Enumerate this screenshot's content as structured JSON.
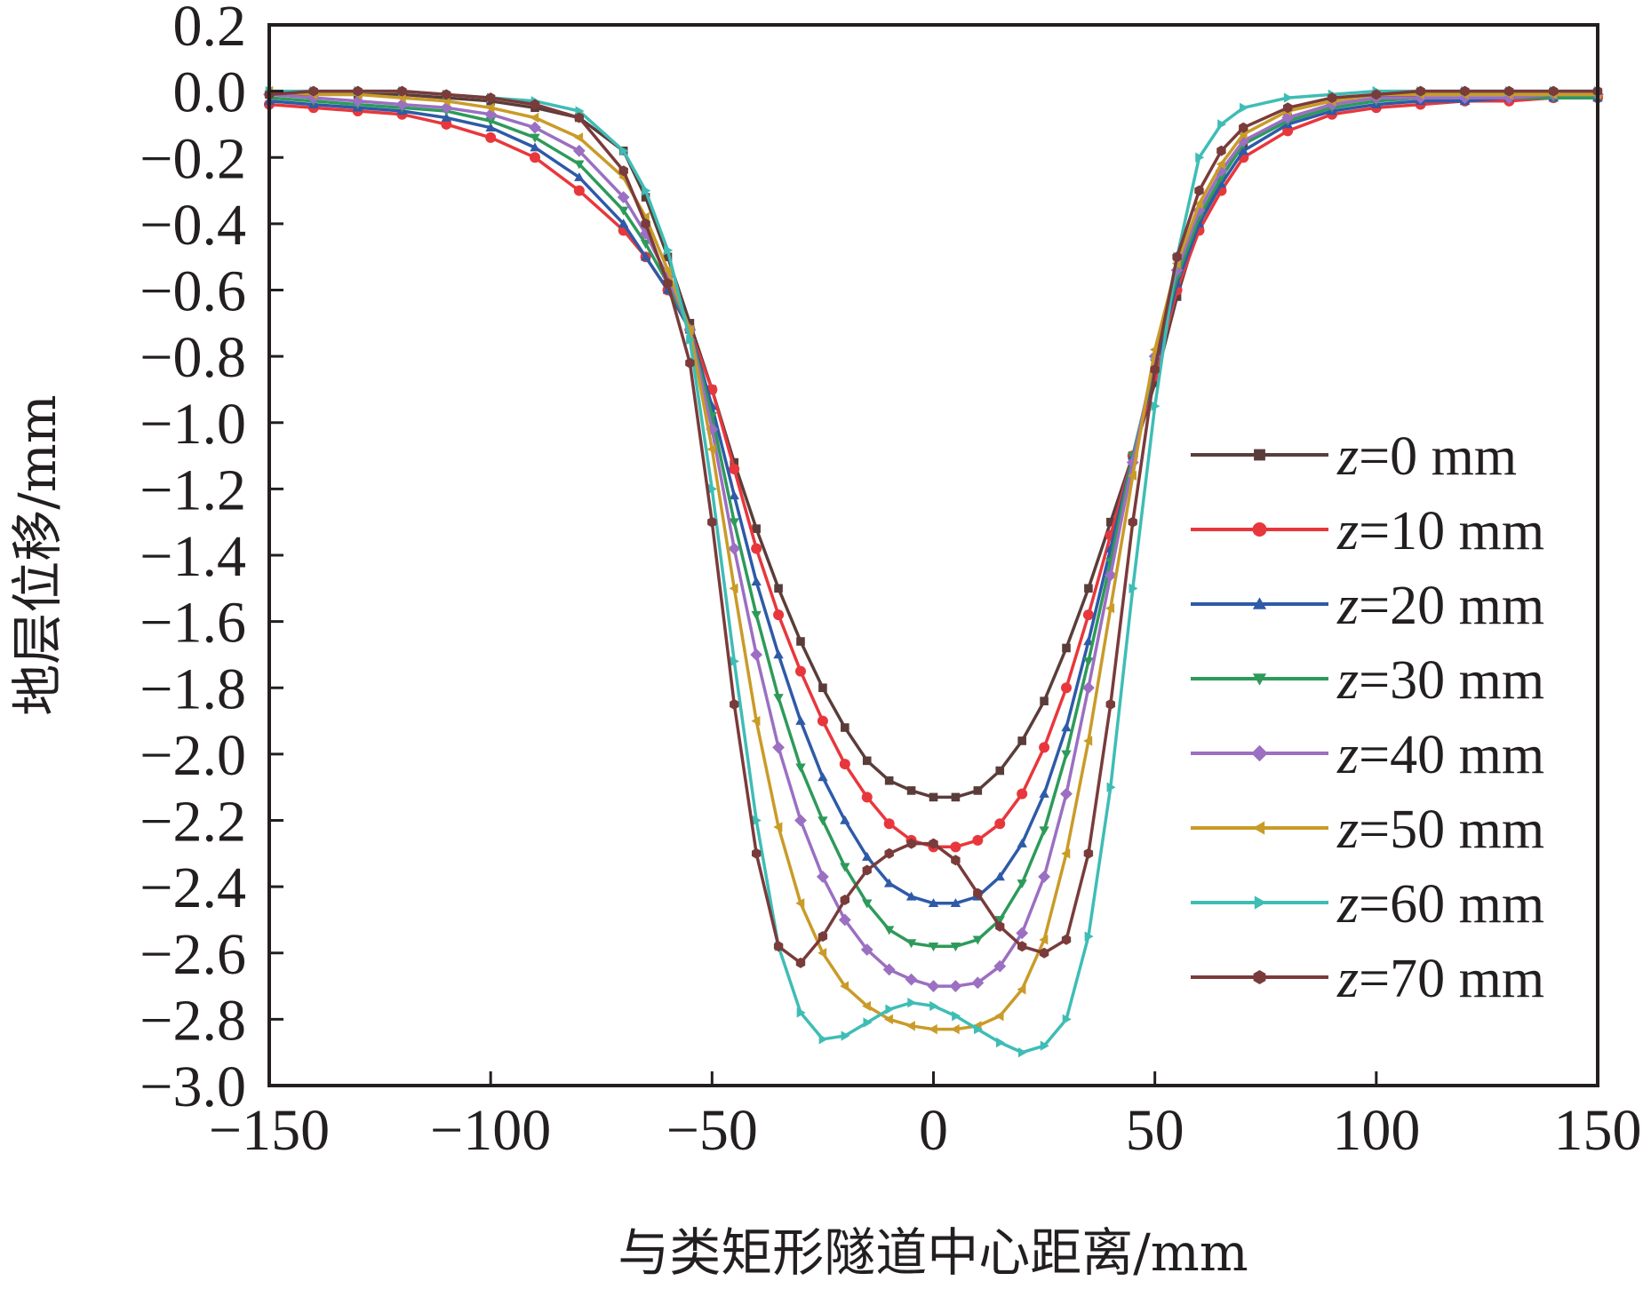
{
  "chart_data": {
    "type": "line",
    "title": "",
    "xlabel": "与类矩形隧道中心距离/mm",
    "ylabel": "地层位移/mm",
    "xlim": [
      -150,
      150
    ],
    "ylim": [
      -3.0,
      0.2
    ],
    "xticks": [
      -150,
      -100,
      -50,
      0,
      50,
      100,
      150
    ],
    "xtick_labels": [
      "−150",
      "−100",
      "−50",
      "0",
      "50",
      "100",
      "150"
    ],
    "yticks": [
      0.2,
      0.0,
      -0.2,
      -0.4,
      -0.6,
      -0.8,
      -1.0,
      -1.2,
      -1.4,
      -1.6,
      -1.8,
      -2.0,
      -2.2,
      -2.4,
      -2.6,
      -2.8,
      -3.0
    ],
    "ytick_labels": [
      "0.2",
      "0.0",
      "−0.2",
      "−0.4",
      "−0.6",
      "−0.8",
      "−1.0",
      "−1.2",
      "−1.4",
      "−1.6",
      "−1.8",
      "−2.0",
      "−2.2",
      "−2.4",
      "−2.6",
      "−2.8",
      "−3.0"
    ],
    "grid": false,
    "legend_position": "right",
    "x": [
      -150,
      -140,
      -130,
      -120,
      -110,
      -100,
      -90,
      -80,
      -70,
      -65,
      -60,
      -55,
      -50,
      -45,
      -40,
      -35,
      -30,
      -25,
      -20,
      -15,
      -10,
      -5,
      0,
      5,
      10,
      15,
      20,
      25,
      30,
      35,
      40,
      45,
      50,
      55,
      60,
      65,
      70,
      80,
      90,
      100,
      110,
      120,
      130,
      140,
      150
    ],
    "series": [
      {
        "name": "z=0 mm",
        "color": "#5a3d3a",
        "marker": "square",
        "values": [
          -0.01,
          -0.01,
          -0.01,
          -0.01,
          -0.02,
          -0.03,
          -0.05,
          -0.08,
          -0.18,
          -0.32,
          -0.5,
          -0.7,
          -0.9,
          -1.12,
          -1.32,
          -1.5,
          -1.66,
          -1.8,
          -1.92,
          -2.02,
          -2.08,
          -2.11,
          -2.13,
          -2.13,
          -2.11,
          -2.05,
          -1.96,
          -1.84,
          -1.68,
          -1.5,
          -1.3,
          -1.1,
          -0.88,
          -0.62,
          -0.4,
          -0.26,
          -0.16,
          -0.08,
          -0.04,
          -0.02,
          -0.01,
          -0.01,
          -0.01,
          -0.01,
          -0.01
        ]
      },
      {
        "name": "z=10 mm",
        "color": "#e8373c",
        "marker": "circle",
        "values": [
          -0.04,
          -0.05,
          -0.06,
          -0.07,
          -0.1,
          -0.14,
          -0.2,
          -0.3,
          -0.42,
          -0.5,
          -0.6,
          -0.72,
          -0.9,
          -1.14,
          -1.38,
          -1.58,
          -1.75,
          -1.9,
          -2.03,
          -2.13,
          -2.21,
          -2.26,
          -2.28,
          -2.28,
          -2.26,
          -2.21,
          -2.12,
          -1.98,
          -1.8,
          -1.58,
          -1.34,
          -1.1,
          -0.86,
          -0.6,
          -0.42,
          -0.3,
          -0.2,
          -0.12,
          -0.07,
          -0.05,
          -0.04,
          -0.03,
          -0.03,
          -0.02,
          -0.02
        ]
      },
      {
        "name": "z=20 mm",
        "color": "#2e5aa8",
        "marker": "triangle-up",
        "values": [
          -0.03,
          -0.04,
          -0.05,
          -0.06,
          -0.08,
          -0.11,
          -0.17,
          -0.26,
          -0.4,
          -0.5,
          -0.6,
          -0.72,
          -0.95,
          -1.22,
          -1.48,
          -1.7,
          -1.9,
          -2.07,
          -2.2,
          -2.31,
          -2.39,
          -2.43,
          -2.45,
          -2.45,
          -2.43,
          -2.37,
          -2.27,
          -2.12,
          -1.92,
          -1.66,
          -1.38,
          -1.1,
          -0.84,
          -0.58,
          -0.4,
          -0.28,
          -0.18,
          -0.1,
          -0.06,
          -0.04,
          -0.03,
          -0.03,
          -0.02,
          -0.02,
          -0.02
        ]
      },
      {
        "name": "z=30 mm",
        "color": "#2e9a5a",
        "marker": "triangle-down",
        "values": [
          -0.02,
          -0.03,
          -0.04,
          -0.05,
          -0.06,
          -0.09,
          -0.14,
          -0.22,
          -0.36,
          -0.46,
          -0.58,
          -0.72,
          -0.98,
          -1.3,
          -1.58,
          -1.83,
          -2.04,
          -2.2,
          -2.34,
          -2.45,
          -2.53,
          -2.57,
          -2.58,
          -2.58,
          -2.56,
          -2.5,
          -2.39,
          -2.23,
          -2.0,
          -1.72,
          -1.42,
          -1.1,
          -0.82,
          -0.56,
          -0.38,
          -0.26,
          -0.16,
          -0.09,
          -0.05,
          -0.03,
          -0.02,
          -0.02,
          -0.02,
          -0.02,
          -0.02
        ]
      },
      {
        "name": "z=40 mm",
        "color": "#9b6fc2",
        "marker": "diamond",
        "values": [
          -0.01,
          -0.02,
          -0.03,
          -0.04,
          -0.05,
          -0.07,
          -0.11,
          -0.18,
          -0.32,
          -0.43,
          -0.56,
          -0.72,
          -1.02,
          -1.38,
          -1.7,
          -1.98,
          -2.2,
          -2.37,
          -2.5,
          -2.59,
          -2.65,
          -2.68,
          -2.7,
          -2.7,
          -2.69,
          -2.64,
          -2.54,
          -2.37,
          -2.12,
          -1.8,
          -1.46,
          -1.12,
          -0.8,
          -0.54,
          -0.36,
          -0.24,
          -0.15,
          -0.08,
          -0.04,
          -0.02,
          -0.02,
          -0.02,
          -0.02,
          -0.01,
          -0.01
        ]
      },
      {
        "name": "z=50 mm",
        "color": "#c99b28",
        "marker": "triangle-left",
        "values": [
          0.0,
          -0.01,
          -0.01,
          -0.02,
          -0.03,
          -0.05,
          -0.08,
          -0.14,
          -0.26,
          -0.38,
          -0.54,
          -0.72,
          -1.08,
          -1.5,
          -1.9,
          -2.22,
          -2.45,
          -2.6,
          -2.7,
          -2.76,
          -2.8,
          -2.82,
          -2.83,
          -2.83,
          -2.82,
          -2.79,
          -2.71,
          -2.56,
          -2.3,
          -1.96,
          -1.56,
          -1.16,
          -0.78,
          -0.52,
          -0.34,
          -0.22,
          -0.13,
          -0.06,
          -0.03,
          -0.01,
          -0.01,
          -0.01,
          -0.01,
          -0.01,
          -0.01
        ]
      },
      {
        "name": "z=60 mm",
        "color": "#3ebdb5",
        "marker": "triangle-right",
        "values": [
          0.0,
          0.0,
          0.0,
          0.0,
          -0.01,
          -0.02,
          -0.03,
          -0.06,
          -0.18,
          -0.3,
          -0.48,
          -0.75,
          -1.2,
          -1.72,
          -2.2,
          -2.58,
          -2.78,
          -2.86,
          -2.85,
          -2.81,
          -2.77,
          -2.75,
          -2.76,
          -2.79,
          -2.83,
          -2.87,
          -2.9,
          -2.88,
          -2.8,
          -2.55,
          -2.1,
          -1.5,
          -0.95,
          -0.5,
          -0.2,
          -0.1,
          -0.05,
          -0.02,
          -0.01,
          0.0,
          0.0,
          0.0,
          0.0,
          0.0,
          0.0
        ]
      },
      {
        "name": "z=70 mm",
        "color": "#7a3b3b",
        "marker": "hexagon",
        "values": [
          -0.01,
          0.0,
          0.0,
          0.0,
          -0.01,
          -0.02,
          -0.04,
          -0.08,
          -0.24,
          -0.4,
          -0.58,
          -0.82,
          -1.3,
          -1.85,
          -2.3,
          -2.58,
          -2.63,
          -2.55,
          -2.44,
          -2.35,
          -2.3,
          -2.27,
          -2.27,
          -2.32,
          -2.42,
          -2.52,
          -2.58,
          -2.6,
          -2.56,
          -2.3,
          -1.85,
          -1.3,
          -0.84,
          -0.5,
          -0.3,
          -0.18,
          -0.11,
          -0.05,
          -0.02,
          -0.01,
          0.0,
          0.0,
          0.0,
          0.0,
          0.0
        ]
      }
    ]
  }
}
